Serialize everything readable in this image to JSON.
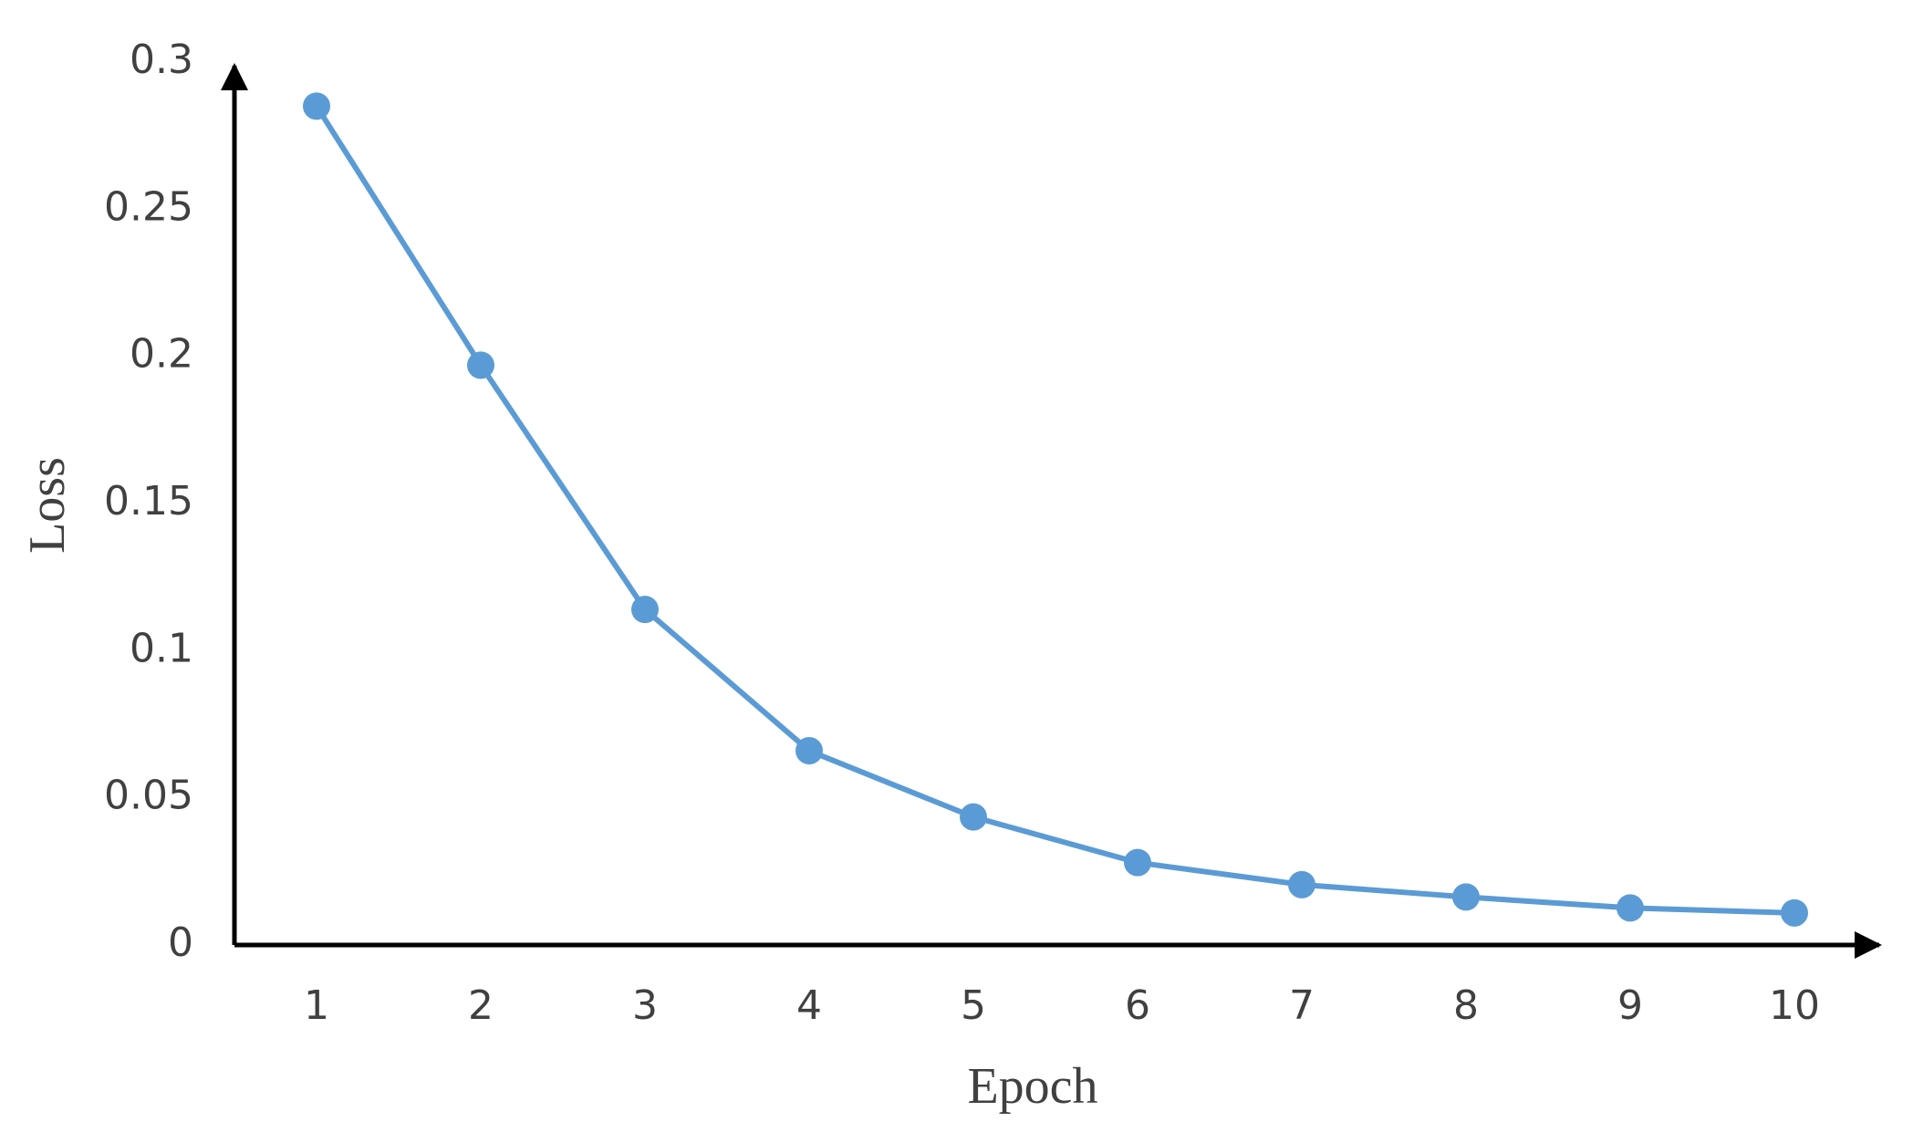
{
  "chart_data": {
    "type": "line",
    "x_label": "Epoch",
    "y_label": "Loss",
    "categories": [
      "1",
      "2",
      "3",
      "4",
      "5",
      "6",
      "7",
      "8",
      "9",
      "10"
    ],
    "series": [
      {
        "name": "Loss",
        "color": "#5b9bd5",
        "values": [
          0.285,
          0.197,
          0.114,
          0.066,
          0.0435,
          0.028,
          0.0205,
          0.0163,
          0.0126,
          0.0109
        ]
      }
    ],
    "ylim": [
      0,
      0.3
    ],
    "yticks": [
      0,
      0.05,
      0.1,
      0.15,
      0.2,
      0.25,
      0.3
    ],
    "grid": false,
    "legend": false
  }
}
